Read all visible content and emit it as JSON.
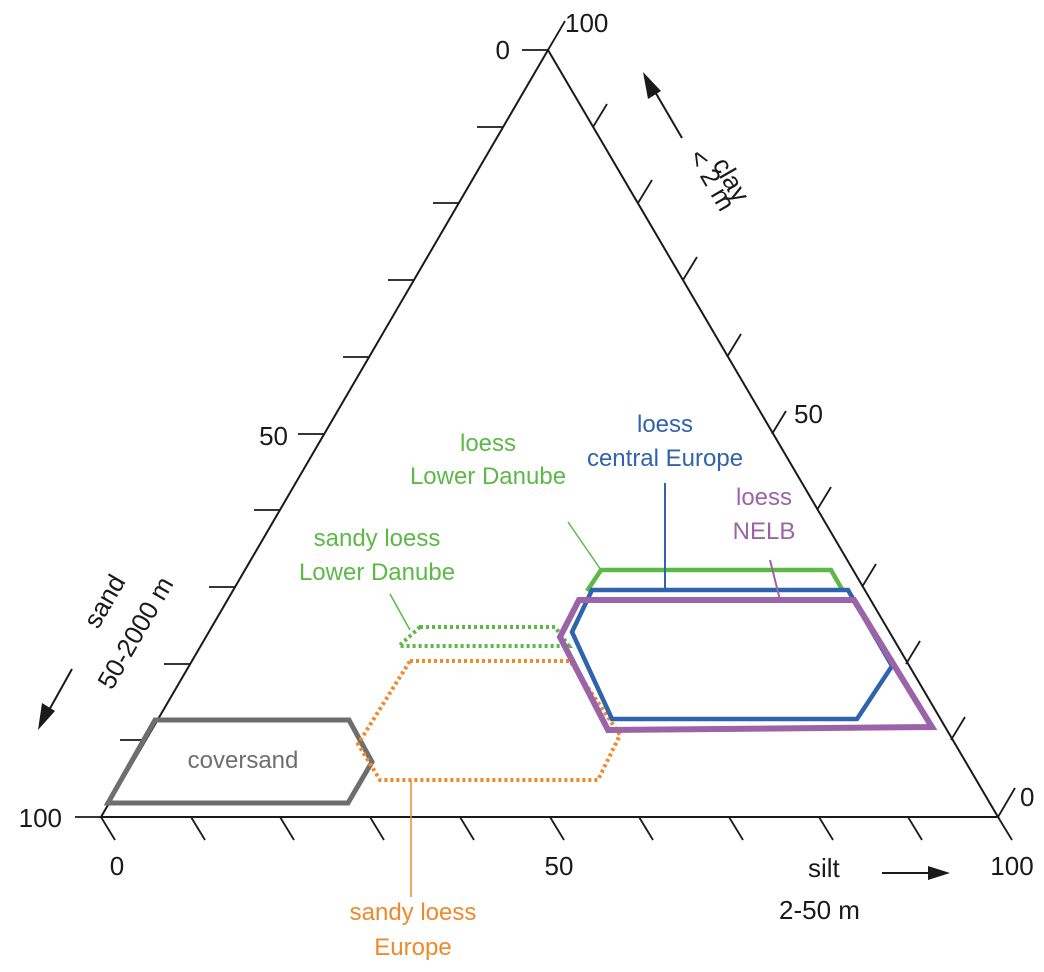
{
  "colors": {
    "green": "#5cb946",
    "blue": "#2f63ad",
    "purple": "#9b64a8",
    "orange": "#ee8a2b",
    "grey": "#6e6e6e"
  },
  "ticks": {
    "sand": {
      "zero": "0",
      "mid": "50",
      "full": "100"
    },
    "clay": {
      "zero": "0",
      "mid": "50",
      "full": "100"
    },
    "silt": {
      "zero": "0",
      "mid": "50",
      "full": "100"
    }
  },
  "axes": {
    "clay": {
      "name": "clay",
      "range": "< 2   m"
    },
    "sand": {
      "name": "sand",
      "range": "50-2000   m"
    },
    "silt": {
      "name": "silt",
      "range": "2-50   m"
    }
  },
  "regions": {
    "coversand": {
      "label": "coversand"
    },
    "sandy_loess_lower_danube": {
      "line1": "sandy loess",
      "line2": "Lower Danube"
    },
    "sandy_loess_europe": {
      "line1": "sandy loess",
      "line2": "Europe"
    },
    "loess_lower_danube": {
      "line1": "loess",
      "line2": "Lower Danube"
    },
    "loess_central_europe": {
      "line1": "loess",
      "line2": "central Europe"
    },
    "loess_nelb": {
      "line1": "loess",
      "line2": "NELB"
    }
  }
}
